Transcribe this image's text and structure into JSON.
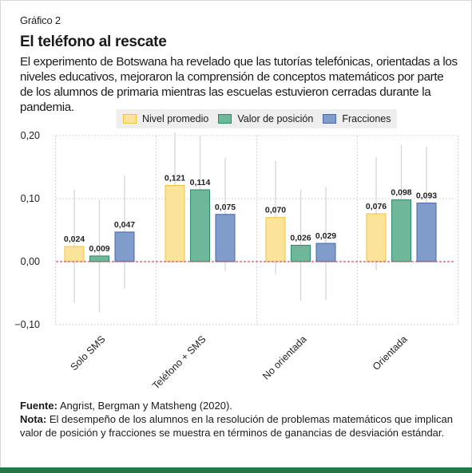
{
  "header": {
    "label": "Gráfico 2",
    "title": "El teléfono al rescate",
    "subtitle": "El experimento de Botswana ha revelado que las tutorías telefónicas, orientadas a los niveles educativos, mejoraron la comprensión de conceptos matemáticos por parte de los alumnos de primaria mientras las escuelas estuvieron cerradas durante la pandemia."
  },
  "footer": {
    "source_label": "Fuente:",
    "source_text": " Angrist, Bergman y Matsheng (2020).",
    "note_label": "Nota:",
    "note_text": " El desempeño de los alumnos en la resolución de problemas matemáticos que implican valor de posición y fracciones se muestra en términos de ganancias de desviación estándar."
  },
  "colors": {
    "fills": [
      "#fbe49a",
      "#6fb79a",
      "#7f9ccb"
    ],
    "strokes": [
      "#f0c43a",
      "#2f8a68",
      "#4a69a8"
    ],
    "zero_line": "#c0283c",
    "grid": "#c8c8c8",
    "whisker": "#d6d6d6",
    "brand_bar": "#1f7a46"
  },
  "chart_data": {
    "type": "bar",
    "categories": [
      "Solo SMS",
      "Teléfono + SMS",
      "No orientada",
      "Orientada"
    ],
    "series": [
      {
        "name": "Nivel promedio",
        "values": [
          0.024,
          0.121,
          0.07,
          0.076
        ],
        "labels": [
          "0,024",
          "0,121",
          "0,070",
          "0,076"
        ],
        "ci_low": [
          -0.066,
          0.031,
          -0.02,
          -0.014
        ],
        "ci_high": [
          0.114,
          0.205,
          0.16,
          0.166
        ]
      },
      {
        "name": "Valor de posición",
        "values": [
          0.009,
          0.114,
          0.026,
          0.098
        ],
        "labels": [
          "0,009",
          "0,114",
          "0,026",
          "0,098"
        ],
        "ci_low": [
          -0.08,
          0.026,
          -0.062,
          0.01
        ],
        "ci_high": [
          0.098,
          0.2,
          0.114,
          0.185
        ]
      },
      {
        "name": "Fracciones",
        "values": [
          0.047,
          0.075,
          0.029,
          0.093
        ],
        "labels": [
          "0,047",
          "0,075",
          "0,029",
          "0,093"
        ],
        "ci_low": [
          -0.043,
          -0.015,
          -0.061,
          0.003
        ],
        "ci_high": [
          0.137,
          0.165,
          0.119,
          0.182
        ]
      }
    ],
    "yticks": [
      0.2,
      0.1,
      0.0,
      -0.1
    ],
    "ytick_labels": [
      "0,20",
      "0,10",
      "0,00",
      "−0,10"
    ],
    "ylim": [
      -0.1,
      0.2
    ],
    "grid": true,
    "legend": "top"
  }
}
